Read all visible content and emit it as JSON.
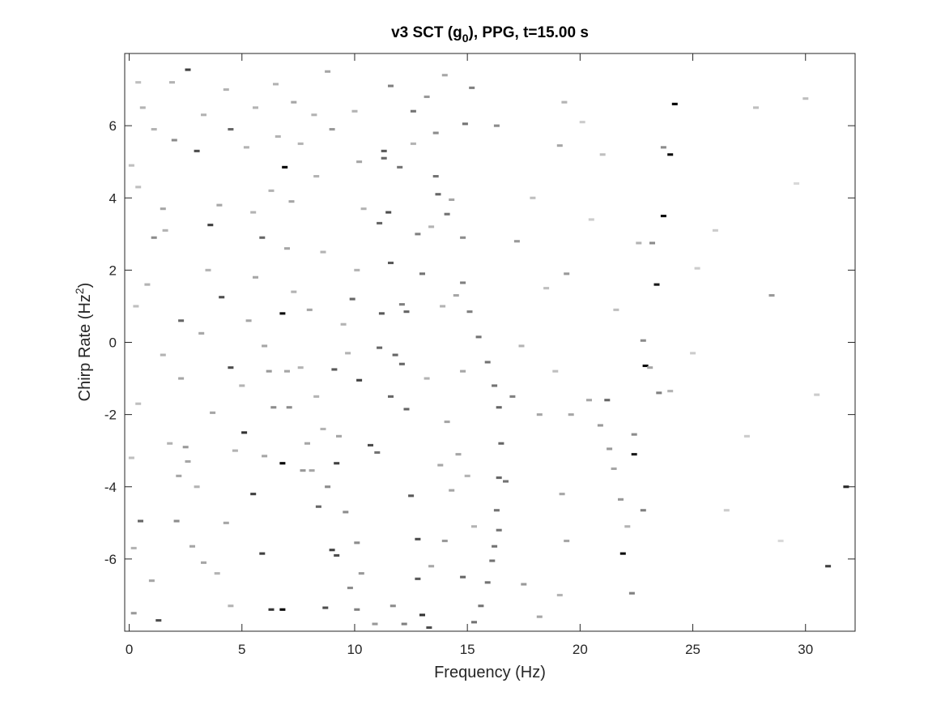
{
  "chart_data": {
    "type": "heatmap",
    "title_parts": {
      "prefix": "v3 SCT (g",
      "subscript": "0",
      "suffix": "), PPG, t=15.00 s"
    },
    "xlabel": "Frequency (Hz)",
    "ylabel_parts": {
      "prefix": "Chirp Rate (Hz",
      "superscript": "2",
      "suffix": ")"
    },
    "xlim": [
      -0.2,
      32.2
    ],
    "ylim": [
      -8.0,
      8.0
    ],
    "x_ticks": [
      0,
      5,
      10,
      15,
      20,
      25,
      30
    ],
    "x_tick_labels": [
      "0",
      "5",
      "10",
      "15",
      "20",
      "25",
      "30"
    ],
    "y_ticks": [
      -6,
      -4,
      -2,
      0,
      2,
      4,
      6
    ],
    "y_tick_labels": [
      "-6",
      "-4",
      "-2",
      "0",
      "2",
      "4",
      "6"
    ],
    "colormap": "gray (white = 0, black = 1)",
    "grid": false,
    "bin_width_hz": 0.25,
    "cell_height_hz2": 0.07,
    "points": [
      [
        6.9,
        4.85,
        1.0
      ],
      [
        24.2,
        6.6,
        1.0
      ],
      [
        24.0,
        5.2,
        0.95
      ],
      [
        23.7,
        3.5,
        0.95
      ],
      [
        23.4,
        1.6,
        0.9
      ],
      [
        6.8,
        0.8,
        0.95
      ],
      [
        22.9,
        -0.65,
        0.95
      ],
      [
        22.4,
        -3.1,
        0.9
      ],
      [
        21.9,
        -5.85,
        0.95
      ],
      [
        6.8,
        -3.35,
        1.0
      ],
      [
        6.8,
        -7.4,
        1.0
      ],
      [
        31.8,
        -4.0,
        0.85
      ],
      [
        31.0,
        -6.2,
        0.75
      ],
      [
        2.6,
        7.55,
        0.75
      ],
      [
        3.0,
        5.3,
        0.7
      ],
      [
        3.6,
        3.25,
        0.75
      ],
      [
        4.1,
        1.25,
        0.7
      ],
      [
        4.5,
        -0.7,
        0.7
      ],
      [
        5.1,
        -2.5,
        0.8
      ],
      [
        5.5,
        -4.2,
        0.75
      ],
      [
        5.9,
        -5.85,
        0.75
      ],
      [
        6.3,
        -7.4,
        0.8
      ],
      [
        1.3,
        -7.7,
        0.7
      ],
      [
        0.5,
        -4.95,
        0.6
      ],
      [
        2.3,
        0.6,
        0.6
      ],
      [
        4.5,
        5.9,
        0.6
      ],
      [
        5.9,
        2.9,
        0.6
      ],
      [
        10.2,
        -1.05,
        0.75
      ],
      [
        10.7,
        -2.85,
        0.7
      ],
      [
        11.5,
        3.6,
        0.7
      ],
      [
        11.6,
        2.2,
        0.65
      ],
      [
        11.3,
        5.3,
        0.65
      ],
      [
        11.3,
        5.1,
        0.6
      ],
      [
        11.1,
        3.3,
        0.6
      ],
      [
        11.2,
        0.8,
        0.65
      ],
      [
        11.1,
        -0.15,
        0.6
      ],
      [
        11.8,
        -0.35,
        0.6
      ],
      [
        12.1,
        -0.6,
        0.6
      ],
      [
        12.3,
        0.85,
        0.6
      ],
      [
        12.3,
        -1.85,
        0.6
      ],
      [
        12.5,
        -4.25,
        0.65
      ],
      [
        12.8,
        -5.45,
        0.7
      ],
      [
        12.8,
        -6.55,
        0.65
      ],
      [
        13.0,
        -7.55,
        0.8
      ],
      [
        13.3,
        -7.9,
        0.7
      ],
      [
        9.0,
        -5.75,
        0.75
      ],
      [
        9.2,
        -5.9,
        0.7
      ],
      [
        8.7,
        -7.35,
        0.7
      ],
      [
        8.4,
        -4.55,
        0.6
      ],
      [
        9.2,
        -3.35,
        0.75
      ],
      [
        9.1,
        -0.75,
        0.65
      ],
      [
        9.9,
        1.2,
        0.6
      ],
      [
        12.1,
        1.05,
        0.5
      ],
      [
        11.0,
        -3.05,
        0.55
      ],
      [
        11.6,
        -1.5,
        0.6
      ],
      [
        13.6,
        4.6,
        0.55
      ],
      [
        13.7,
        4.1,
        0.6
      ],
      [
        14.1,
        3.55,
        0.55
      ],
      [
        15.5,
        0.15,
        0.55
      ],
      [
        15.9,
        -0.55,
        0.55
      ],
      [
        16.2,
        -1.2,
        0.55
      ],
      [
        16.4,
        -1.8,
        0.6
      ],
      [
        16.5,
        -2.8,
        0.6
      ],
      [
        16.4,
        -3.75,
        0.6
      ],
      [
        16.7,
        -3.85,
        0.55
      ],
      [
        16.3,
        -4.65,
        0.55
      ],
      [
        16.4,
        -5.2,
        0.55
      ],
      [
        16.2,
        -5.65,
        0.55
      ],
      [
        16.1,
        -6.05,
        0.55
      ],
      [
        15.9,
        -6.65,
        0.55
      ],
      [
        15.6,
        -7.3,
        0.55
      ],
      [
        15.3,
        -7.75,
        0.55
      ],
      [
        14.8,
        -6.5,
        0.6
      ],
      [
        14.9,
        6.05,
        0.55
      ],
      [
        15.2,
        7.05,
        0.5
      ],
      [
        12.6,
        6.4,
        0.55
      ],
      [
        12.0,
        4.85,
        0.55
      ],
      [
        11.6,
        7.1,
        0.5
      ],
      [
        13.0,
        1.9,
        0.55
      ],
      [
        12.8,
        3.0,
        0.5
      ],
      [
        14.8,
        1.65,
        0.5
      ],
      [
        15.1,
        0.85,
        0.5
      ],
      [
        17.0,
        -1.5,
        0.5
      ],
      [
        21.2,
        -1.6,
        0.6
      ],
      [
        22.8,
        -4.65,
        0.5
      ],
      [
        22.3,
        -6.95,
        0.5
      ],
      [
        23.5,
        -1.4,
        0.5
      ],
      [
        23.2,
        2.75,
        0.45
      ],
      [
        23.7,
        5.4,
        0.45
      ],
      [
        22.4,
        -2.55,
        0.45
      ],
      [
        2.0,
        5.6,
        0.45
      ],
      [
        0.6,
        6.5,
        0.3
      ],
      [
        1.5,
        3.7,
        0.35
      ],
      [
        1.1,
        2.9,
        0.45
      ],
      [
        0.8,
        1.6,
        0.3
      ],
      [
        1.5,
        -0.35,
        0.3
      ],
      [
        2.3,
        -1.0,
        0.35
      ],
      [
        2.5,
        -2.9,
        0.4
      ],
      [
        2.2,
        -3.7,
        0.35
      ],
      [
        2.1,
        -4.95,
        0.45
      ],
      [
        2.8,
        -5.65,
        0.35
      ],
      [
        1.0,
        -6.6,
        0.35
      ],
      [
        0.2,
        -7.5,
        0.4
      ],
      [
        3.7,
        -1.95,
        0.35
      ],
      [
        3.2,
        0.25,
        0.35
      ],
      [
        3.5,
        2.0,
        0.3
      ],
      [
        4.0,
        3.8,
        0.35
      ],
      [
        3.3,
        6.3,
        0.3
      ],
      [
        1.9,
        7.2,
        0.3
      ],
      [
        4.3,
        7.0,
        0.3
      ],
      [
        5.2,
        5.4,
        0.3
      ],
      [
        5.6,
        1.8,
        0.35
      ],
      [
        6.0,
        -0.1,
        0.35
      ],
      [
        6.2,
        -0.8,
        0.4
      ],
      [
        6.4,
        -1.8,
        0.45
      ],
      [
        6.0,
        -3.15,
        0.35
      ],
      [
        7.1,
        -1.8,
        0.45
      ],
      [
        7.0,
        -0.8,
        0.35
      ],
      [
        7.2,
        3.9,
        0.35
      ],
      [
        7.6,
        5.5,
        0.3
      ],
      [
        7.3,
        6.65,
        0.35
      ],
      [
        6.5,
        7.15,
        0.3
      ],
      [
        8.2,
        6.3,
        0.3
      ],
      [
        8.8,
        7.5,
        0.35
      ],
      [
        9.0,
        5.9,
        0.4
      ],
      [
        8.3,
        4.6,
        0.3
      ],
      [
        8.6,
        2.5,
        0.3
      ],
      [
        8.0,
        0.9,
        0.35
      ],
      [
        7.6,
        -0.7,
        0.3
      ],
      [
        7.9,
        -2.8,
        0.35
      ],
      [
        7.7,
        -3.55,
        0.4
      ],
      [
        8.1,
        -3.55,
        0.35
      ],
      [
        8.8,
        -4.0,
        0.45
      ],
      [
        9.6,
        -4.7,
        0.45
      ],
      [
        10.1,
        -5.55,
        0.45
      ],
      [
        10.3,
        -6.4,
        0.4
      ],
      [
        9.8,
        -6.8,
        0.45
      ],
      [
        10.1,
        -7.4,
        0.5
      ],
      [
        10.9,
        -7.8,
        0.4
      ],
      [
        11.7,
        -7.3,
        0.45
      ],
      [
        12.2,
        -7.8,
        0.5
      ],
      [
        13.4,
        -6.2,
        0.35
      ],
      [
        14.0,
        -5.5,
        0.4
      ],
      [
        14.3,
        -4.1,
        0.35
      ],
      [
        14.6,
        -3.1,
        0.35
      ],
      [
        14.1,
        -2.2,
        0.35
      ],
      [
        14.8,
        -0.8,
        0.35
      ],
      [
        14.5,
        1.3,
        0.35
      ],
      [
        14.8,
        2.9,
        0.45
      ],
      [
        14.3,
        3.95,
        0.35
      ],
      [
        13.6,
        5.8,
        0.45
      ],
      [
        13.2,
        6.8,
        0.4
      ],
      [
        14.0,
        7.4,
        0.35
      ],
      [
        16.3,
        6.0,
        0.45
      ],
      [
        17.2,
        2.8,
        0.4
      ],
      [
        17.4,
        -0.1,
        0.3
      ],
      [
        18.2,
        -2.0,
        0.35
      ],
      [
        17.5,
        -6.7,
        0.4
      ],
      [
        18.2,
        -7.6,
        0.35
      ],
      [
        19.1,
        -7.0,
        0.3
      ],
      [
        19.4,
        -5.5,
        0.35
      ],
      [
        19.2,
        -4.2,
        0.35
      ],
      [
        19.6,
        -2.0,
        0.35
      ],
      [
        19.4,
        1.9,
        0.4
      ],
      [
        19.1,
        5.45,
        0.35
      ],
      [
        19.3,
        6.65,
        0.3
      ],
      [
        20.4,
        -1.6,
        0.35
      ],
      [
        20.9,
        -2.3,
        0.4
      ],
      [
        21.3,
        -2.95,
        0.4
      ],
      [
        21.8,
        -4.35,
        0.4
      ],
      [
        22.1,
        -5.1,
        0.3
      ],
      [
        21.5,
        -3.5,
        0.35
      ],
      [
        22.6,
        2.75,
        0.3
      ],
      [
        22.8,
        0.05,
        0.45
      ],
      [
        23.1,
        -0.7,
        0.35
      ],
      [
        24.0,
        -1.35,
        0.3
      ],
      [
        25.2,
        2.05,
        0.2
      ],
      [
        28.5,
        1.3,
        0.4
      ],
      [
        27.8,
        6.5,
        0.25
      ],
      [
        30.0,
        6.75,
        0.25
      ],
      [
        30.5,
        -1.45,
        0.2
      ],
      [
        26.5,
        -4.65,
        0.2
      ],
      [
        0.1,
        4.9,
        0.25
      ],
      [
        0.4,
        4.3,
        0.25
      ],
      [
        0.3,
        1.0,
        0.25
      ],
      [
        0.4,
        -1.7,
        0.25
      ],
      [
        0.1,
        -3.2,
        0.25
      ],
      [
        0.2,
        -5.7,
        0.3
      ],
      [
        0.4,
        7.2,
        0.25
      ],
      [
        1.1,
        5.9,
        0.3
      ],
      [
        1.6,
        3.1,
        0.3
      ],
      [
        1.8,
        -2.8,
        0.3
      ],
      [
        2.6,
        -3.3,
        0.35
      ],
      [
        3.0,
        -4.0,
        0.3
      ],
      [
        3.3,
        -6.1,
        0.35
      ],
      [
        3.9,
        -6.4,
        0.3
      ],
      [
        4.3,
        -5.0,
        0.35
      ],
      [
        4.5,
        -7.3,
        0.3
      ],
      [
        4.7,
        -3.0,
        0.3
      ],
      [
        5.0,
        -1.2,
        0.3
      ],
      [
        5.3,
        0.6,
        0.35
      ],
      [
        5.5,
        3.6,
        0.3
      ],
      [
        5.6,
        6.5,
        0.3
      ],
      [
        6.6,
        5.7,
        0.3
      ],
      [
        6.3,
        4.2,
        0.3
      ],
      [
        7.0,
        2.6,
        0.35
      ],
      [
        7.3,
        1.4,
        0.3
      ],
      [
        8.3,
        -1.5,
        0.3
      ],
      [
        8.6,
        -2.4,
        0.3
      ],
      [
        9.3,
        -2.6,
        0.35
      ],
      [
        9.7,
        -0.3,
        0.3
      ],
      [
        9.5,
        0.5,
        0.3
      ],
      [
        10.1,
        2.0,
        0.3
      ],
      [
        10.4,
        3.7,
        0.3
      ],
      [
        10.2,
        5.0,
        0.35
      ],
      [
        10.0,
        6.4,
        0.3
      ],
      [
        12.6,
        5.5,
        0.3
      ],
      [
        13.4,
        3.2,
        0.3
      ],
      [
        13.9,
        1.0,
        0.3
      ],
      [
        13.2,
        -1.0,
        0.3
      ],
      [
        13.8,
        -3.4,
        0.35
      ],
      [
        15.0,
        -3.7,
        0.3
      ],
      [
        15.3,
        -5.1,
        0.3
      ],
      [
        17.9,
        4.0,
        0.25
      ],
      [
        18.5,
        1.5,
        0.25
      ],
      [
        18.9,
        -0.8,
        0.25
      ],
      [
        20.5,
        3.4,
        0.2
      ],
      [
        21.0,
        5.2,
        0.25
      ],
      [
        20.1,
        6.1,
        0.2
      ],
      [
        21.6,
        0.9,
        0.25
      ],
      [
        25.0,
        -0.3,
        0.2
      ],
      [
        26.0,
        3.1,
        0.2
      ],
      [
        27.4,
        -2.6,
        0.2
      ],
      [
        28.9,
        -5.5,
        0.15
      ],
      [
        29.6,
        4.4,
        0.15
      ]
    ]
  }
}
